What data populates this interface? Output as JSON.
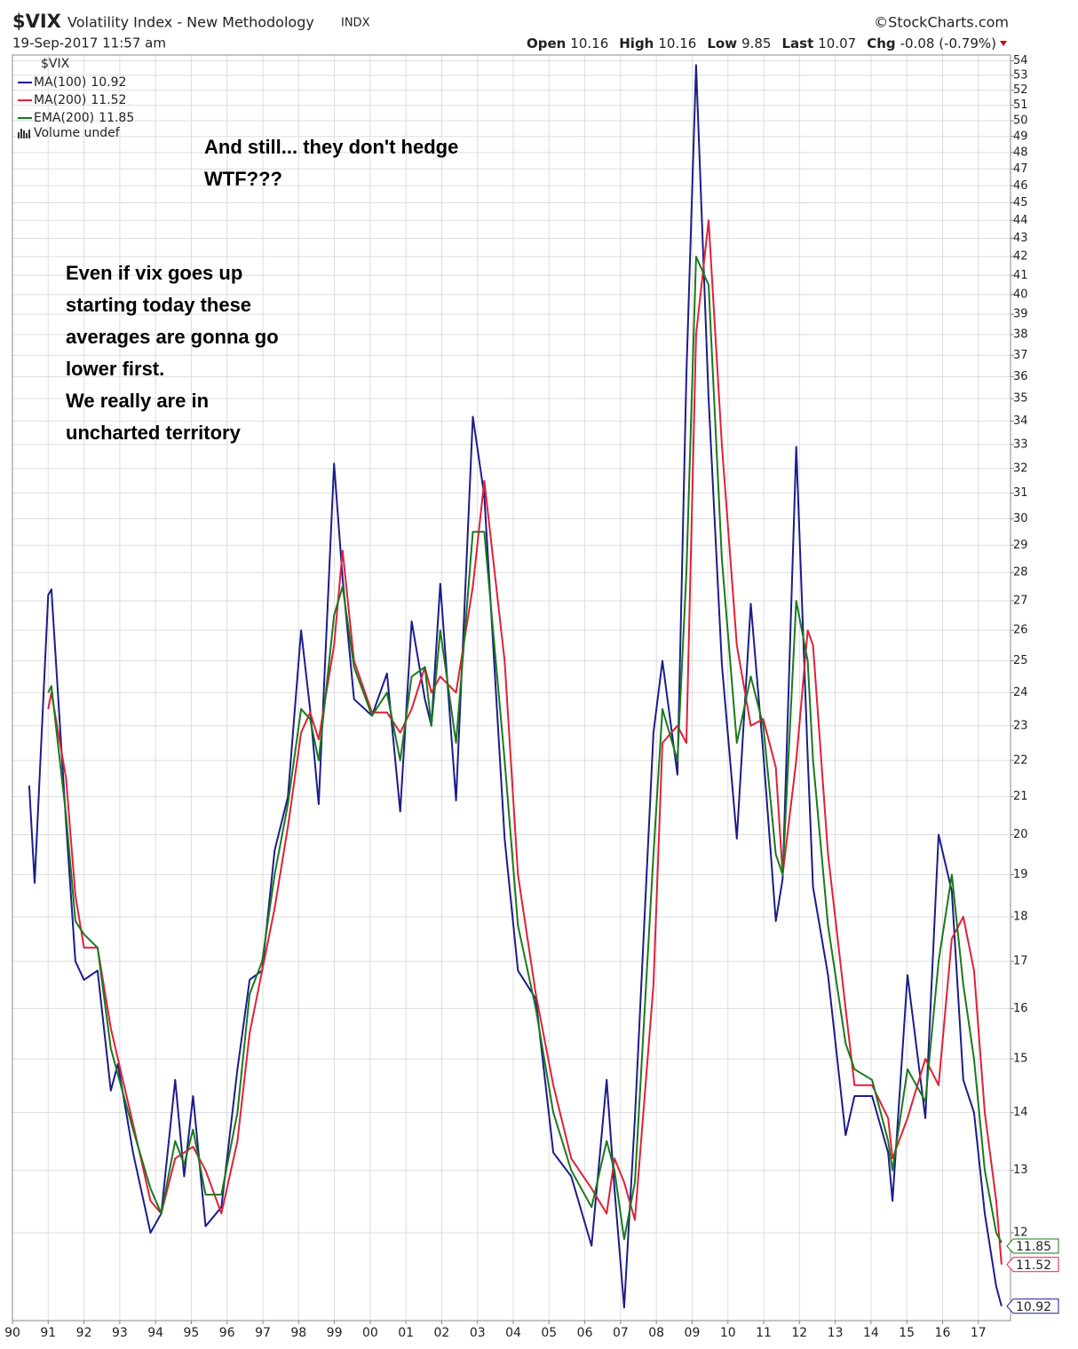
{
  "chart_data": {
    "type": "line",
    "symbol": "$VIX",
    "title": "Volatility Index - New Methodology",
    "exchange": "INDX",
    "date": "19-Sep-2017 11:57 am",
    "source": "©StockCharts.com",
    "quote": [
      {
        "label": "Open",
        "value": "10.16"
      },
      {
        "label": "High",
        "value": "10.16"
      },
      {
        "label": "Low",
        "value": "9.85"
      },
      {
        "label": "Last",
        "value": "10.07"
      },
      {
        "label": "Chg",
        "value": "-0.08 (-0.79%)"
      }
    ],
    "legend_title": "$VIX",
    "volume_label": "Volume undef",
    "annotations": [
      {
        "lines": [
          "And still... they don't hedge",
          "WTF???"
        ]
      },
      {
        "lines": [
          "Even if vix goes up",
          "starting today these",
          "averages are gonna go",
          "lower first.",
          "We really are in",
          "uncharted territory"
        ]
      }
    ],
    "log_scale": true,
    "grid": true,
    "xlim": [
      1990,
      2017.9
    ],
    "ylim": [
      10.72,
      54.4
    ],
    "xticks": [
      {
        "value": 1990,
        "label": "90"
      },
      {
        "value": 1991,
        "label": "91"
      },
      {
        "value": 1992,
        "label": "92"
      },
      {
        "value": 1993,
        "label": "93"
      },
      {
        "value": 1994,
        "label": "94"
      },
      {
        "value": 1995,
        "label": "95"
      },
      {
        "value": 1996,
        "label": "96"
      },
      {
        "value": 1997,
        "label": "97"
      },
      {
        "value": 1998,
        "label": "98"
      },
      {
        "value": 1999,
        "label": "99"
      },
      {
        "value": 2000,
        "label": "00"
      },
      {
        "value": 2001,
        "label": "01"
      },
      {
        "value": 2002,
        "label": "02"
      },
      {
        "value": 2003,
        "label": "03"
      },
      {
        "value": 2004,
        "label": "04"
      },
      {
        "value": 2005,
        "label": "05"
      },
      {
        "value": 2006,
        "label": "06"
      },
      {
        "value": 2007,
        "label": "07"
      },
      {
        "value": 2008,
        "label": "08"
      },
      {
        "value": 2009,
        "label": "09"
      },
      {
        "value": 2010,
        "label": "10"
      },
      {
        "value": 2011,
        "label": "11"
      },
      {
        "value": 2012,
        "label": "12"
      },
      {
        "value": 2013,
        "label": "13"
      },
      {
        "value": 2014,
        "label": "14"
      },
      {
        "value": 2015,
        "label": "15"
      },
      {
        "value": 2016,
        "label": "16"
      },
      {
        "value": 2017,
        "label": "17"
      }
    ],
    "yticks": [
      12,
      13,
      14,
      15,
      16,
      17,
      18,
      19,
      20,
      21,
      22,
      23,
      24,
      25,
      26,
      27,
      28,
      29,
      30,
      31,
      32,
      33,
      34,
      35,
      36,
      37,
      38,
      39,
      40,
      41,
      42,
      43,
      44,
      45,
      46,
      47,
      48,
      49,
      50,
      51,
      52,
      53,
      54
    ],
    "x": [
      1990.47,
      1990.62,
      1991.0,
      1991.09,
      1991.5,
      1991.76,
      1992.0,
      1992.38,
      1992.75,
      1992.95,
      1993.37,
      1993.86,
      1994.16,
      1994.55,
      1994.8,
      1995.05,
      1995.4,
      1995.84,
      1996.29,
      1996.63,
      1996.98,
      1997.33,
      1997.7,
      1998.07,
      1998.32,
      1998.56,
      1998.99,
      1999.23,
      1999.55,
      2000.05,
      2000.47,
      2000.84,
      2001.16,
      2001.53,
      2001.71,
      2001.96,
      2002.4,
      2002.87,
      2003.19,
      2003.76,
      2004.13,
      2004.63,
      2005.12,
      2005.62,
      2006.19,
      2006.61,
      2006.83,
      2007.1,
      2007.4,
      2007.92,
      2008.17,
      2008.59,
      2008.84,
      2009.11,
      2009.46,
      2009.83,
      2010.25,
      2010.64,
      2010.99,
      2011.34,
      2011.53,
      2011.91,
      2012.23,
      2012.38,
      2012.8,
      2013.29,
      2013.54,
      2014.03,
      2014.48,
      2014.6,
      2015.02,
      2015.52,
      2015.89,
      2016.26,
      2016.58,
      2016.88,
      2017.18,
      2017.5,
      2017.65
    ],
    "series": [
      {
        "name": "MA(100)",
        "color": "#1c1c8c",
        "values": [
          21.3,
          18.8,
          27.2,
          27.4,
          20.3,
          17.0,
          16.6,
          16.8,
          14.4,
          14.9,
          13.3,
          12.0,
          12.3,
          14.6,
          12.9,
          14.3,
          12.1,
          12.4,
          14.8,
          16.6,
          16.8,
          19.6,
          21.0,
          26.0,
          23.5,
          20.8,
          32.2,
          27.8,
          23.8,
          23.3,
          24.6,
          20.6,
          26.3,
          23.8,
          23.0,
          27.6,
          20.9,
          34.2,
          30.9,
          19.9,
          16.8,
          16.2,
          13.3,
          12.9,
          11.8,
          14.6,
          12.7,
          10.9,
          13.9,
          22.8,
          25.0,
          21.6,
          36.1,
          53.7,
          35.0,
          24.9,
          19.9,
          26.9,
          22.2,
          17.9,
          18.9,
          32.9,
          22.1,
          18.7,
          16.7,
          13.6,
          14.3,
          14.3,
          13.3,
          12.5,
          16.7,
          13.9,
          20.0,
          18.6,
          14.6,
          14.0,
          12.3,
          11.2,
          10.92
        ]
      },
      {
        "name": "MA(200)",
        "color": "#e0203a",
        "values": [
          null,
          null,
          23.5,
          24.0,
          21.5,
          18.5,
          17.3,
          17.3,
          15.6,
          15.0,
          13.8,
          12.5,
          12.3,
          13.2,
          13.3,
          13.4,
          13.0,
          12.3,
          13.5,
          15.5,
          16.8,
          18.2,
          20.2,
          22.8,
          23.4,
          22.6,
          25.5,
          28.8,
          25.0,
          23.4,
          23.4,
          22.8,
          23.5,
          24.8,
          24.0,
          24.5,
          24.0,
          27.5,
          31.5,
          25.0,
          19.0,
          16.3,
          14.5,
          13.2,
          12.7,
          12.3,
          13.2,
          12.8,
          12.2,
          16.5,
          22.5,
          23.0,
          22.5,
          38.0,
          44.0,
          33.0,
          25.5,
          23.0,
          23.2,
          21.8,
          19.0,
          22.0,
          26.0,
          25.5,
          19.5,
          16.0,
          14.5,
          14.5,
          13.9,
          13.2,
          13.9,
          15.0,
          14.5,
          17.5,
          18.0,
          16.8,
          14.0,
          12.5,
          11.52
        ]
      },
      {
        "name": "EMA(200)",
        "color": "#1a7a1a",
        "values": [
          null,
          null,
          24.0,
          24.2,
          20.5,
          17.9,
          17.6,
          17.3,
          15.2,
          14.7,
          13.7,
          12.7,
          12.3,
          13.5,
          13.1,
          13.7,
          12.6,
          12.6,
          14.0,
          16.3,
          17.0,
          19.0,
          20.8,
          23.5,
          23.2,
          22.0,
          26.5,
          27.5,
          24.8,
          23.3,
          24.0,
          22.0,
          24.5,
          24.8,
          23.0,
          26.0,
          22.5,
          29.5,
          29.5,
          22.0,
          17.8,
          16.0,
          14.0,
          13.0,
          12.4,
          13.5,
          13.0,
          11.9,
          12.8,
          19.5,
          23.5,
          22.0,
          28.0,
          42.0,
          40.5,
          28.5,
          22.5,
          24.5,
          23.0,
          19.5,
          19.0,
          27.0,
          25.0,
          22.0,
          17.8,
          15.3,
          14.8,
          14.6,
          13.5,
          13.0,
          14.8,
          14.2,
          17.0,
          19.0,
          16.5,
          15.0,
          13.0,
          12.0,
          11.85
        ]
      }
    ]
  }
}
